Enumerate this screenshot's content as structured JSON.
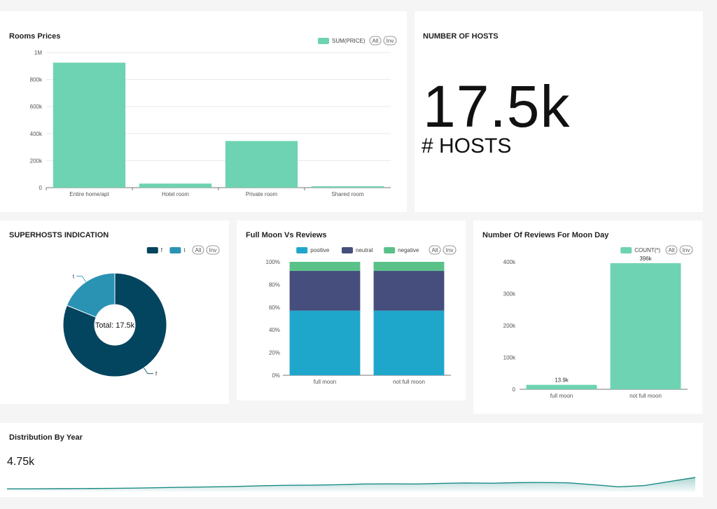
{
  "colors": {
    "teal": "#6dd3b2",
    "dark_navy": "#03445f",
    "mid_blue": "#2a93b4",
    "positive": "#1fa6cb",
    "neutral": "#454e7c",
    "negative": "#5ac189",
    "sparkline": "#1a8a84"
  },
  "legend_controls": {
    "all": "All",
    "inv": "Inv"
  },
  "rooms_prices": {
    "title": "Rooms Prices",
    "chart_data": {
      "type": "bar",
      "categories": [
        "Entire home/apt",
        "Hotel room",
        "Private room",
        "Shared room"
      ],
      "series": [
        {
          "name": "SUM(PRICE)",
          "values": [
            925000,
            30000,
            345000,
            10000
          ]
        }
      ],
      "ylim": [
        0,
        1000000
      ],
      "yticks": [
        "0",
        "200k",
        "400k",
        "600k",
        "800k",
        "1M"
      ],
      "ytick_values": [
        0,
        200000,
        400000,
        600000,
        800000,
        1000000
      ],
      "grid": true,
      "legend": "top-right"
    }
  },
  "number_of_hosts": {
    "title": "NUMBER OF HOSTS",
    "value": "17.5k",
    "subheader": "# HOSTS"
  },
  "superhosts": {
    "title": "SUPERHOSTS INDICATION",
    "chart_data": {
      "type": "pie",
      "labels": [
        "f",
        "t"
      ],
      "values": [
        14.2,
        3.3
      ],
      "center_label": "Total: 17.5k",
      "legend": "top-right"
    }
  },
  "full_moon_reviews": {
    "title": "Full Moon Vs Reviews",
    "chart_data": {
      "type": "bar",
      "stacked": true,
      "categories": [
        "full moon",
        "not full moon"
      ],
      "series": [
        {
          "name": "positive",
          "values": [
            57,
            57
          ]
        },
        {
          "name": "neutral",
          "values": [
            35,
            35
          ]
        },
        {
          "name": "negative",
          "values": [
            8,
            8
          ]
        }
      ],
      "ylim": [
        0,
        100
      ],
      "yticks": [
        "0%",
        "20%",
        "40%",
        "60%",
        "80%",
        "100%"
      ],
      "ytick_values": [
        0,
        20,
        40,
        60,
        80,
        100
      ],
      "legend": "top-right"
    }
  },
  "reviews_moon_day": {
    "title": "Number Of Reviews For Moon Day",
    "chart_data": {
      "type": "bar",
      "categories": [
        "full moon",
        "not full moon"
      ],
      "series": [
        {
          "name": "COUNT(*)",
          "values": [
            13900,
            396000
          ]
        }
      ],
      "data_labels": [
        "13.9k",
        "396k"
      ],
      "ylim": [
        0,
        400000
      ],
      "yticks": [
        "0",
        "100k",
        "200k",
        "300k",
        "400k"
      ],
      "ytick_values": [
        0,
        100000,
        200000,
        300000,
        400000
      ],
      "legend": "top-right"
    }
  },
  "distribution_by_year": {
    "title": "Distribution By Year",
    "value": "4.75k",
    "chart_data": {
      "type": "area",
      "values": [
        0.9,
        0.9,
        0.95,
        1.0,
        1.05,
        1.15,
        1.3,
        1.45,
        1.55,
        1.7,
        1.95,
        2.1,
        2.15,
        2.3,
        2.55,
        2.6,
        2.55,
        2.75,
        2.9,
        2.8,
        3.0,
        3.05,
        2.95,
        2.3,
        1.6,
        2.0,
        3.4,
        4.75
      ]
    }
  }
}
